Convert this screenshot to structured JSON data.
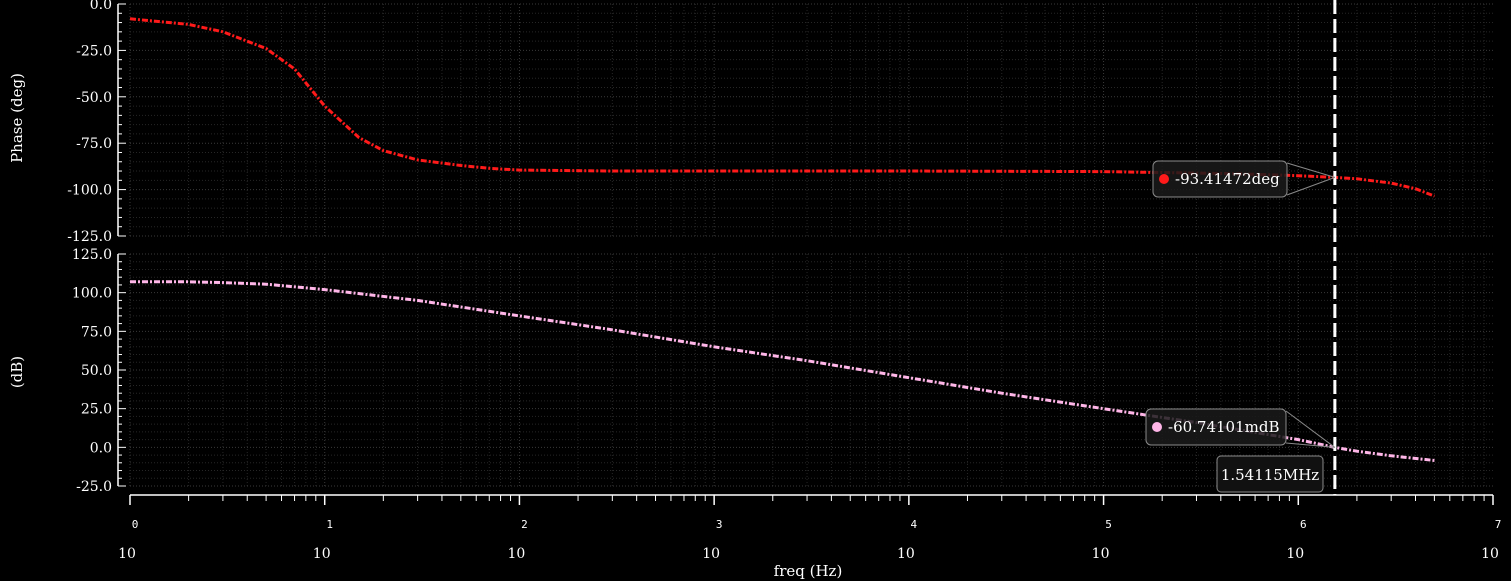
{
  "chart_data": [
    {
      "type": "line",
      "ylabel": "Phase (deg)",
      "ylim": [
        -125.0,
        0.0
      ],
      "yticks": [
        "0.0",
        "-25.0",
        "-50.0",
        "-75.0",
        "-100.0",
        "-125.0"
      ],
      "x_scale": "log",
      "series": [
        {
          "color": "#ff1a1a",
          "x": [
            1,
            2,
            3,
            5,
            7,
            10,
            15,
            20,
            30,
            50,
            70,
            100,
            300,
            1000,
            10000,
            100000,
            500000,
            1000000,
            1541150,
            2000000,
            3000000,
            4000000,
            5000000
          ],
          "y": [
            -8,
            -11,
            -15,
            -24,
            -35,
            -55,
            -72,
            -79,
            -84,
            -87,
            -88.5,
            -89.5,
            -90,
            -90,
            -90,
            -90.3,
            -91.5,
            -92.5,
            -93.41,
            -94.2,
            -96.5,
            -99.5,
            -103.5
          ]
        }
      ],
      "grid": true
    },
    {
      "type": "line",
      "ylabel": "(dB)",
      "ylim": [
        -25.0,
        125.0
      ],
      "yticks": [
        "125.0",
        "100.0",
        "75.0",
        "50.0",
        "25.0",
        "0.0",
        "-25.0"
      ],
      "x_scale": "log",
      "series": [
        {
          "color": "#ffb6e8",
          "x": [
            1,
            2,
            3,
            5,
            10,
            30,
            100,
            300,
            1000,
            3000,
            10000,
            30000,
            100000,
            300000,
            1000000,
            1541150,
            2000000,
            3000000,
            5000000
          ],
          "y": [
            107,
            107,
            106.5,
            105.5,
            102,
            95,
            85,
            76,
            65,
            56,
            45,
            35,
            25,
            16,
            5,
            -0.061,
            -2.5,
            -5.5,
            -8.5
          ]
        }
      ],
      "grid": true
    }
  ],
  "xaxis": {
    "label": "freq (Hz)",
    "bases": [
      "10",
      "10",
      "10",
      "10",
      "10",
      "10",
      "10",
      "10"
    ],
    "exponents": [
      "0",
      "1",
      "2",
      "3",
      "4",
      "5",
      "6",
      "7"
    ]
  },
  "cursor": {
    "freq_hz": 1541150,
    "freq_label": "1.54115MHz",
    "phase_label": "-93.41472deg",
    "mag_label": "-60.74101mdB"
  }
}
